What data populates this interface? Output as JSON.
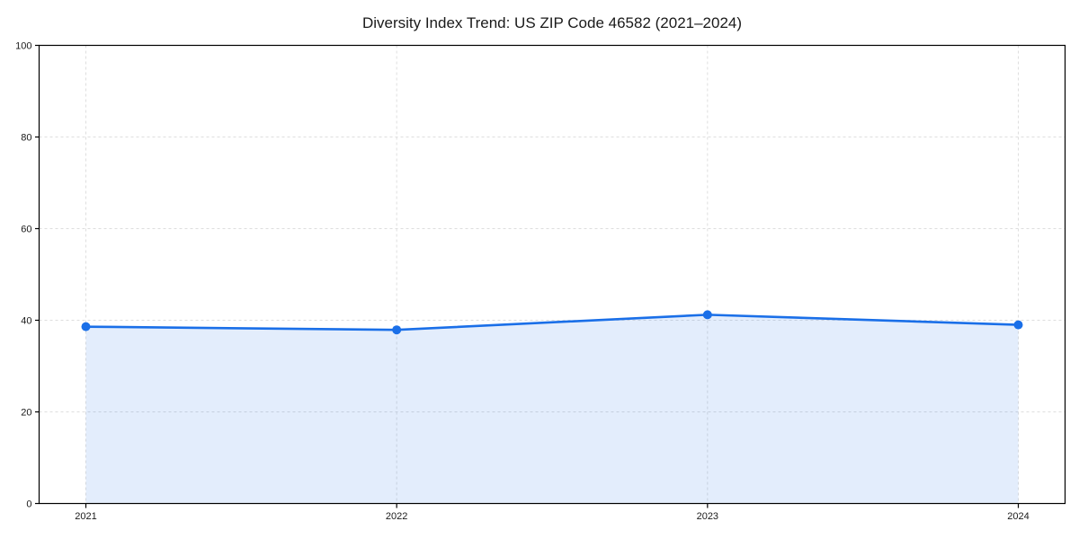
{
  "page": {
    "background": "#ffffff"
  },
  "chart_data": {
    "type": "area",
    "title": "Diversity Index Trend: US ZIP Code 46582 (2021–2024)",
    "categories": [
      "2021",
      "2022",
      "2023",
      "2024"
    ],
    "series": [
      {
        "name": "Diversity Index",
        "values": [
          38.6,
          37.9,
          41.2,
          39.0
        ]
      }
    ],
    "xlabel": "",
    "ylabel": "",
    "ylim": [
      0,
      100
    ],
    "yticks": [
      0,
      20,
      40,
      60,
      80,
      100
    ],
    "grid": true,
    "grid_style": "dashed",
    "legend_position": "none",
    "marker": "circle",
    "colors": {
      "line": "#1a6fe8",
      "area_fill": "#1a6fe8",
      "area_opacity": 0.12,
      "grid": "#dedede",
      "axis": "#000000",
      "text": "#1a1a1a",
      "background": "#ffffff"
    }
  }
}
